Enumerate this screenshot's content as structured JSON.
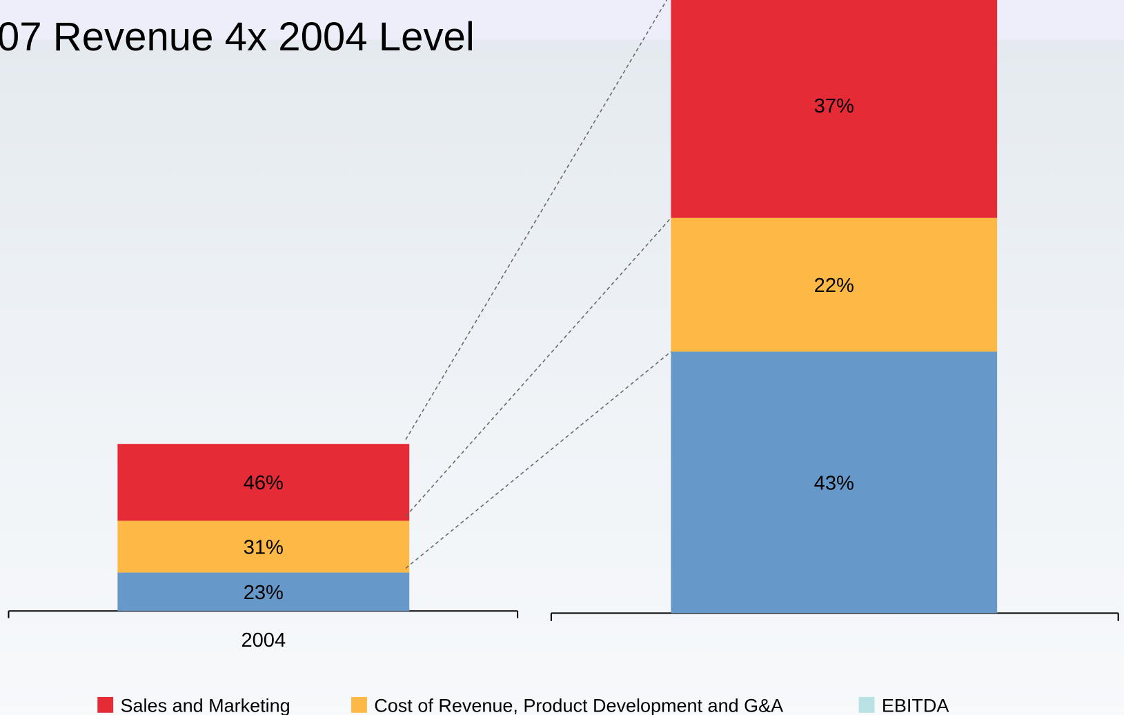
{
  "chart_data": {
    "type": "stacked-bar",
    "title": "07 Revenue 4x 2004 Level",
    "categories": [
      "2004",
      null
    ],
    "series": [
      {
        "color": "#6699c9",
        "values": [
          23,
          43
        ],
        "value_labels": [
          "23%",
          "43%"
        ]
      },
      {
        "name": "Cost of Revenue, Product Development and G&A",
        "color": "#fdb845",
        "values": [
          31,
          22
        ],
        "value_labels": [
          "31%",
          "22%"
        ]
      },
      {
        "name": "Sales and Marketing",
        "color": "#e52b35",
        "values": [
          46,
          37
        ],
        "value_labels": [
          "46%",
          "37%"
        ]
      },
      {
        "name": "EBITDA",
        "color": "#b9e0e3",
        "values": [
          null,
          null
        ]
      }
    ]
  }
}
